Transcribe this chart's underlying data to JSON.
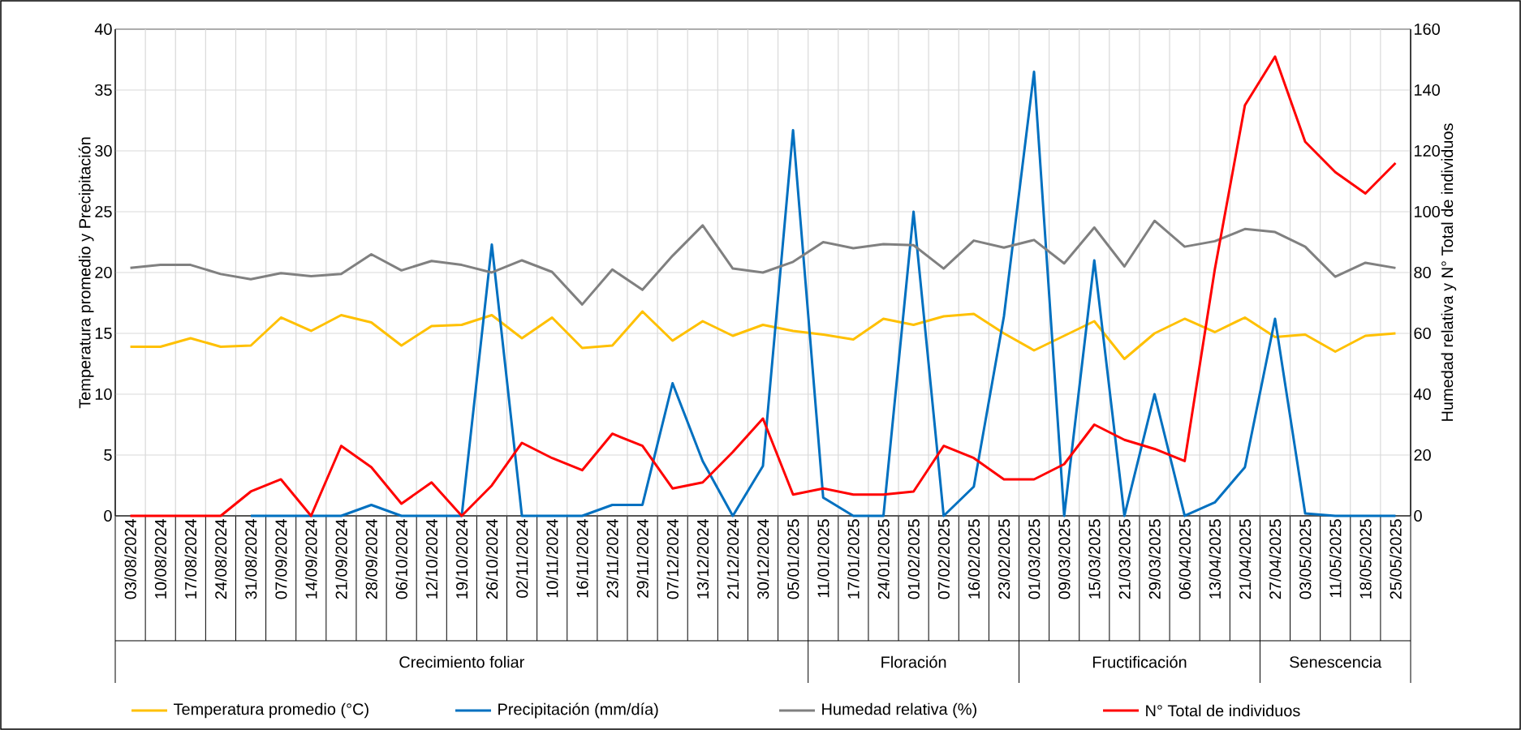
{
  "chart_data": {
    "type": "line",
    "categories": [
      "03/08/2024",
      "10/08/2024",
      "17/08/2024",
      "24/08/2024",
      "31/08/2024",
      "07/09/2024",
      "14/09/2024",
      "21/09/2024",
      "28/09/2024",
      "06/10/2024",
      "12/10/2024",
      "19/10/2024",
      "26/10/2024",
      "02/11/2024",
      "10/11/2024",
      "16/11/2024",
      "23/11/2024",
      "29/11/2024",
      "07/12/2024",
      "13/12/2024",
      "21/12/2024",
      "30/12/2024",
      "05/01/2025",
      "11/01/2025",
      "17/01/2025",
      "24/01/2025",
      "01/02/2025",
      "07/02/2025",
      "16/02/2025",
      "23/02/2025",
      "01/03/2025",
      "09/03/2025",
      "15/03/2025",
      "21/03/2025",
      "29/03/2025",
      "06/04/2025",
      "13/04/2025",
      "21/04/2025",
      "27/04/2025",
      "03/05/2025",
      "11/05/2025",
      "18/05/2025",
      "25/05/2025"
    ],
    "series": [
      {
        "name": "Temperatura promedio (°C)",
        "color": "#ffc000",
        "values": [
          13.9,
          13.9,
          14.6,
          13.9,
          14.0,
          16.3,
          15.2,
          16.5,
          15.9,
          14.0,
          15.6,
          15.7,
          16.5,
          14.6,
          16.3,
          13.8,
          14.0,
          16.8,
          14.4,
          16.0,
          14.8,
          15.7,
          15.2,
          14.9,
          14.5,
          16.2,
          15.7,
          16.4,
          16.6,
          15.0,
          13.6,
          14.8,
          16.0,
          12.9,
          15.0,
          16.2,
          15.1,
          16.3,
          14.7,
          14.9,
          13.5,
          14.8,
          15.0
        ]
      },
      {
        "name": "Precipitación (mm/día)",
        "color": "#0070c0",
        "values": [
          null,
          null,
          null,
          null,
          0,
          0,
          0,
          0,
          0.9,
          0,
          0,
          0,
          22.3,
          0,
          0,
          0,
          0.9,
          0.9,
          10.9,
          4.5,
          0,
          4.1,
          31.7,
          1.5,
          0,
          0,
          25.0,
          0,
          2.4,
          16.4,
          36.5,
          0,
          21.0,
          0,
          10.0,
          0,
          1.1,
          4.0,
          16.2,
          0.2,
          0,
          0,
          0
        ]
      },
      {
        "name": "Humedad relativa (%)",
        "color": "#808080",
        "axis": "y2",
        "values": [
          81.5,
          82.5,
          82.5,
          79.5,
          77.8,
          79.8,
          78.8,
          79.5,
          86,
          80.7,
          83.8,
          82.5,
          80,
          84,
          80.2,
          69.5,
          81,
          74.3,
          85.5,
          95.5,
          81.3,
          80,
          83.5,
          90,
          88,
          89.3,
          89,
          81.3,
          90.5,
          88.2,
          90.7,
          83,
          94.8,
          82,
          97,
          88.5,
          90.3,
          94.3,
          93.3,
          88.5,
          78.6,
          83.2,
          81.5
        ]
      },
      {
        "name": "N° Total de individuos",
        "color": "#ff0000",
        "axis": "y2",
        "values": [
          0,
          0,
          0,
          0,
          8,
          12,
          0,
          23,
          16,
          4,
          11,
          0,
          10,
          24,
          19,
          15,
          27,
          23,
          9,
          11,
          21,
          32,
          7,
          9,
          7,
          7,
          8,
          23,
          19,
          12,
          12,
          17,
          30,
          25,
          22,
          18,
          81,
          135,
          151,
          123,
          113,
          106,
          116
        ]
      }
    ],
    "ylabel": "Temperatura promedio y Precipitación",
    "y2label": "Humedad relativa y N° Total de individuos",
    "ylim": [
      0,
      40
    ],
    "yticks": [
      0,
      5,
      10,
      15,
      20,
      25,
      30,
      35,
      40
    ],
    "y2lim": [
      0,
      160
    ],
    "y2ticks": [
      0,
      20,
      40,
      60,
      80,
      100,
      120,
      140,
      160
    ],
    "annotations": [
      "Crecimiento foliar",
      "Floración",
      "Fructificación",
      "Senescencia"
    ],
    "grid": true,
    "legend": "bottom",
    "line_style": "solid"
  }
}
